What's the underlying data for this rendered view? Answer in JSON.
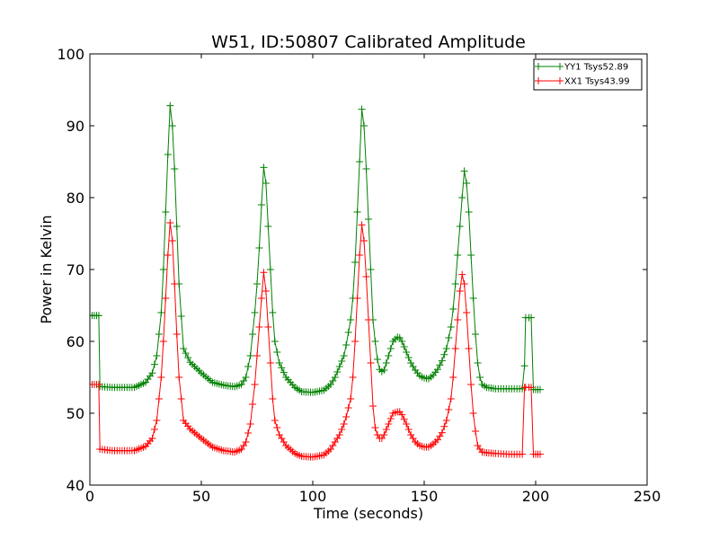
{
  "chart_data": {
    "type": "line",
    "title": "W51, ID:50807 Calibrated Amplitude",
    "xlabel": "Time (seconds)",
    "ylabel": "Power in Kelvin",
    "xlim": [
      0,
      250
    ],
    "ylim": [
      40,
      100
    ],
    "xticks": [
      "0",
      "50",
      "100",
      "150",
      "200",
      "250"
    ],
    "yticks": [
      "40",
      "50",
      "60",
      "70",
      "80",
      "90",
      "100"
    ],
    "grid": false,
    "legend_position": "top-right",
    "marker": "+",
    "series": [
      {
        "name": "YY1 Tsys52.89",
        "color": "#008000",
        "x": [
          0,
          4,
          4.5,
          10,
          20,
          25,
          28,
          30,
          32,
          33,
          34,
          35,
          36,
          37,
          38,
          39,
          40,
          42,
          45,
          50,
          55,
          60,
          65,
          68,
          70,
          72,
          74,
          75,
          76,
          77,
          78,
          79,
          80,
          81,
          82,
          83,
          85,
          88,
          92,
          95,
          100,
          105,
          108,
          110,
          112,
          114,
          115,
          117,
          118,
          119,
          120,
          121,
          122,
          123,
          124,
          125,
          126,
          127,
          128,
          129,
          130,
          131,
          132,
          134,
          136,
          138,
          139,
          140,
          142,
          144,
          146,
          148,
          150,
          152,
          154,
          156,
          158,
          160,
          162,
          163,
          164,
          165,
          166,
          167,
          168,
          169,
          170,
          171,
          172,
          173,
          174,
          175,
          176,
          178,
          182,
          188,
          194,
          195,
          195.5,
          197,
          198,
          199,
          202
        ],
        "values": [
          63.6,
          63.6,
          53.7,
          53.6,
          53.6,
          54.3,
          55.6,
          58,
          64,
          70,
          78,
          86,
          92.8,
          90,
          84,
          76,
          68,
          59,
          57.1,
          55.6,
          54.3,
          53.9,
          53.7,
          54,
          55,
          58,
          64,
          68,
          73,
          79,
          84.2,
          82,
          76,
          70,
          64,
          60,
          57,
          55,
          53.6,
          53,
          52.9,
          53.2,
          54,
          55,
          56.5,
          58,
          59.5,
          63,
          66,
          71,
          78,
          85,
          92.3,
          90,
          84,
          77,
          70,
          63,
          60,
          57.5,
          56.1,
          55.8,
          56,
          58,
          60,
          60.6,
          60.5,
          60,
          58.5,
          57,
          56,
          55.2,
          54.9,
          54.8,
          55.3,
          56.1,
          57.3,
          59,
          62,
          64.5,
          68,
          72,
          76,
          80,
          83.7,
          82,
          78,
          72,
          66,
          61,
          57,
          55,
          54,
          53.6,
          53.4,
          53.4,
          53.4,
          56.6,
          63.3,
          63.3,
          63.3,
          53.3,
          53.3
        ]
      },
      {
        "name": "XX1 Tsys43.99",
        "color": "#ff0000",
        "x": [
          0,
          4,
          4.5,
          10,
          20,
          25,
          28,
          30,
          32,
          33,
          34,
          35,
          36,
          37,
          38,
          39,
          40,
          42,
          45,
          50,
          55,
          60,
          65,
          68,
          70,
          72,
          74,
          75,
          76,
          77,
          78,
          79,
          80,
          81,
          82,
          83,
          85,
          88,
          92,
          95,
          100,
          105,
          108,
          110,
          112,
          114,
          115,
          117,
          118,
          119,
          120,
          121,
          122,
          123,
          124,
          125,
          126,
          127,
          128,
          129,
          130,
          131,
          132,
          134,
          136,
          138,
          139,
          140,
          142,
          144,
          146,
          148,
          150,
          152,
          154,
          156,
          158,
          160,
          162,
          163,
          164,
          165,
          166,
          167,
          168,
          169,
          170,
          171,
          172,
          173,
          174,
          175,
          176,
          178,
          182,
          188,
          194,
          195,
          195.5,
          197,
          198,
          199,
          202
        ],
        "values": [
          54,
          54,
          45,
          44.8,
          44.8,
          45.4,
          46.5,
          49,
          55,
          60,
          66,
          72,
          76.5,
          74,
          68,
          61,
          55,
          49,
          47.8,
          46.5,
          45.3,
          44.8,
          44.6,
          45,
          46,
          48.5,
          54,
          58,
          62,
          66,
          69.6,
          67,
          62,
          57,
          52,
          49,
          47,
          45.5,
          44.4,
          44,
          43.9,
          44.2,
          45,
          46,
          47,
          48.5,
          49.5,
          52,
          55,
          60,
          66,
          72,
          76.2,
          74,
          69,
          63,
          57,
          51,
          48,
          47,
          46.5,
          46.5,
          47,
          48.5,
          50,
          50.2,
          50.2,
          49.8,
          48.5,
          47,
          46,
          45.5,
          45.3,
          45.3,
          45.7,
          46.3,
          47.3,
          49,
          52,
          55,
          59,
          63,
          67,
          69.3,
          68,
          64,
          59,
          54,
          50,
          47.5,
          45.5,
          45,
          44.6,
          44.5,
          44.4,
          44.3,
          44.3,
          53.6,
          53.6,
          53.6,
          53.6,
          44.3,
          44.3
        ]
      }
    ]
  }
}
